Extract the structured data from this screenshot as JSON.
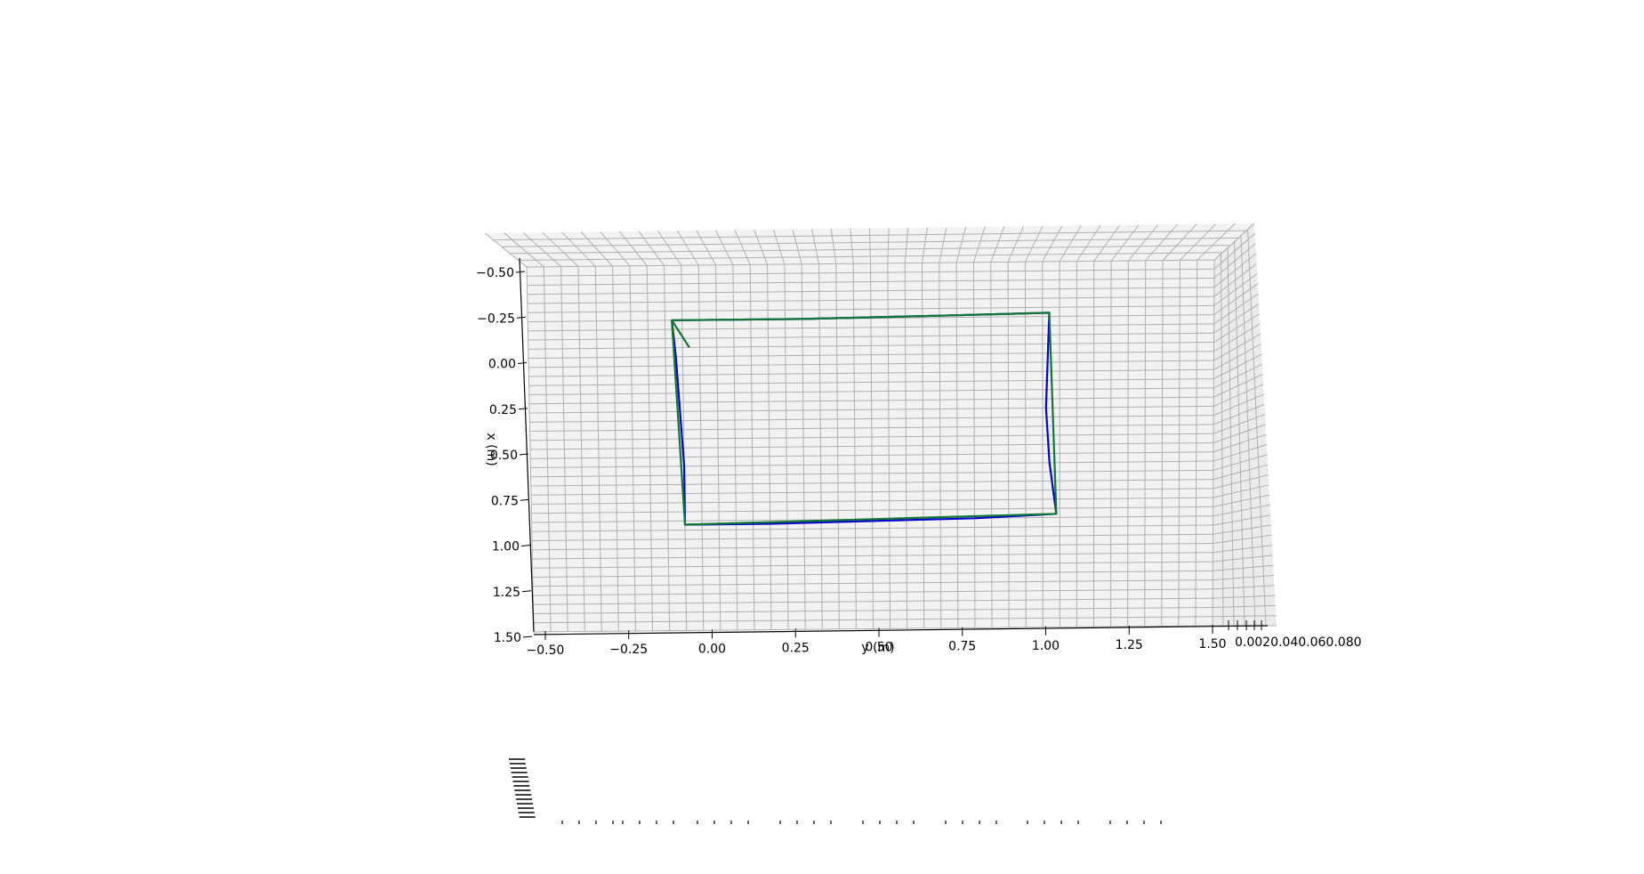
{
  "chart_data": {
    "type": "line",
    "projection": "3d",
    "title": "",
    "xlabel": "x (m)",
    "ylabel": "y (m)",
    "zlabel": "",
    "x_axis": {
      "ticks": [
        "−0.50",
        "−0.25",
        "0.00",
        "0.25",
        "0.50",
        "0.75",
        "1.00",
        "1.25",
        "1.50"
      ],
      "range": [
        -0.5,
        1.5
      ]
    },
    "y_axis": {
      "ticks": [
        "−0.50",
        "−0.25",
        "0.00",
        "0.25",
        "0.50",
        "0.75",
        "1.00",
        "1.25",
        "1.50"
      ],
      "range": [
        -0.5,
        1.5
      ]
    },
    "z_axis": {
      "tick_text": "0.0020.040.060.080",
      "range": [
        0,
        0.08
      ]
    },
    "grid": true,
    "pane_color": "#f2f2f2",
    "grid_color": "#b0b0b0",
    "series": [
      {
        "color": "#0000cc",
        "points": [
          [
            -0.08,
            -0.2
          ],
          [
            -0.07,
            0.0
          ],
          [
            -0.06,
            0.3
          ],
          [
            -0.05,
            0.6
          ],
          [
            -0.05,
            0.92
          ],
          [
            0.2,
            0.92
          ],
          [
            0.5,
            0.91
          ],
          [
            0.8,
            0.9
          ],
          [
            1.04,
            0.88
          ],
          [
            1.02,
            0.6
          ],
          [
            1.01,
            0.3
          ],
          [
            1.02,
            -0.22
          ],
          [
            0.7,
            -0.21
          ],
          [
            0.3,
            -0.2
          ],
          [
            -0.08,
            -0.2
          ]
        ]
      },
      {
        "color": "#117733",
        "points": [
          [
            -0.03,
            -0.05
          ],
          [
            -0.08,
            -0.2
          ],
          [
            0.3,
            -0.2
          ],
          [
            0.7,
            -0.21
          ],
          [
            1.02,
            -0.22
          ],
          [
            1.04,
            0.88
          ],
          [
            0.5,
            0.9
          ],
          [
            -0.05,
            0.92
          ],
          [
            -0.08,
            -0.2
          ]
        ]
      }
    ]
  }
}
